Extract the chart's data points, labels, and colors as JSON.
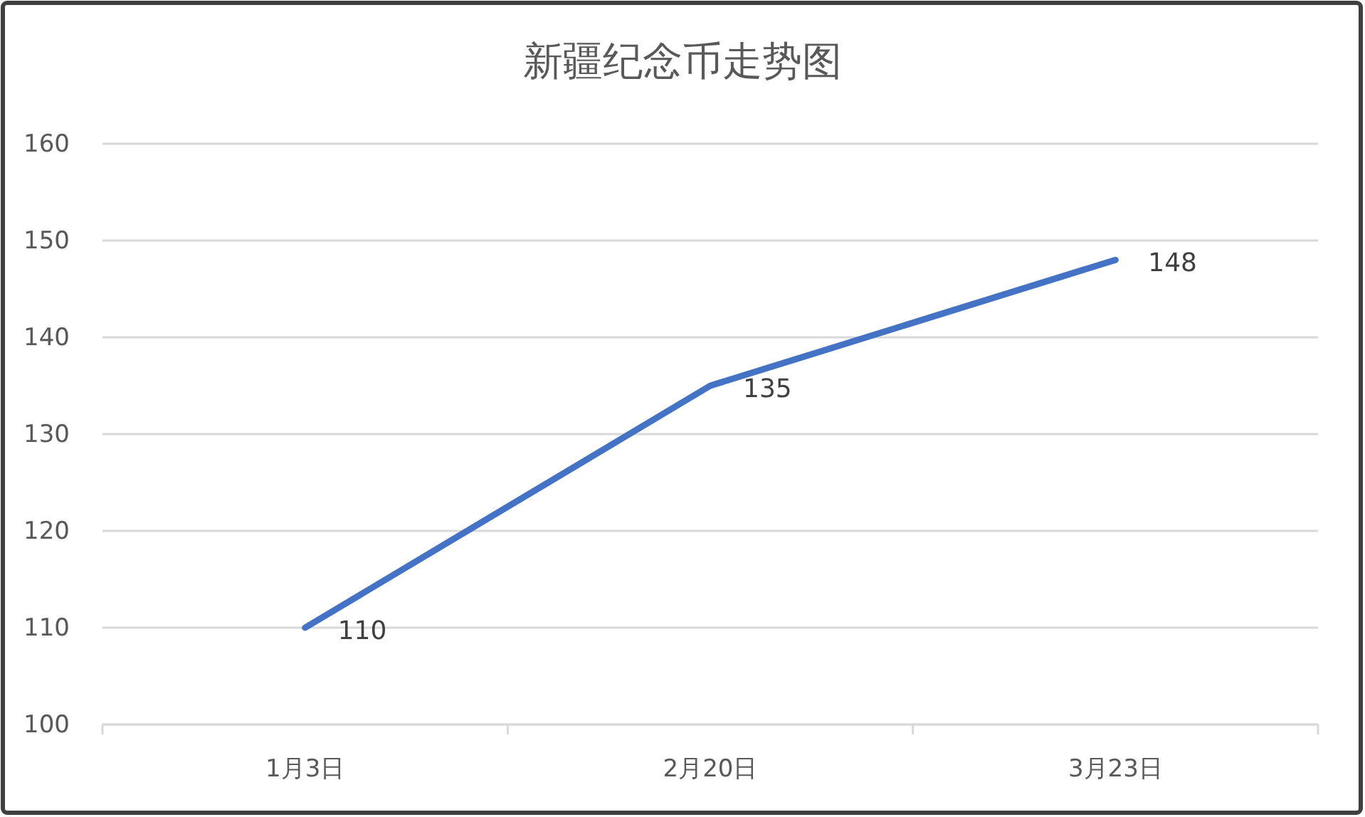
{
  "chart_data": {
    "type": "line",
    "title": "新疆纪念币走势图",
    "categories": [
      "1月3日",
      "2月20日",
      "3月23日"
    ],
    "values": [
      110,
      135,
      148
    ],
    "color": "#4472c4",
    "ylim": [
      100,
      160
    ],
    "yticks": [
      100,
      110,
      120,
      130,
      140,
      150,
      160
    ],
    "grid": "y",
    "data_labels": true
  }
}
